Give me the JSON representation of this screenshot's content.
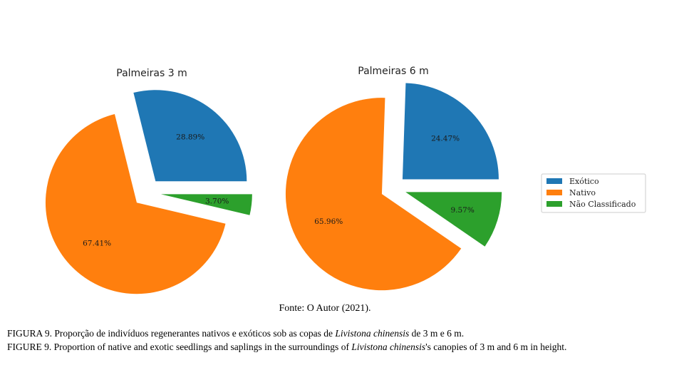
{
  "chart_data": [
    {
      "type": "pie",
      "title": "Palmeiras 3 m",
      "exploded": true,
      "start_angle_deg": 0,
      "direction": "counterclockwise",
      "slices": [
        {
          "name": "Exótico",
          "value": 28.89,
          "label": "28.89%",
          "color": "#1f77b4"
        },
        {
          "name": "Nativo",
          "value": 67.41,
          "label": "67.41%",
          "color": "#ff7f0e"
        },
        {
          "name": "Não Classificado",
          "value": 3.7,
          "label": "3.70%",
          "color": "#2ca02c"
        }
      ]
    },
    {
      "type": "pie",
      "title": "Palmeiras 6 m",
      "exploded": true,
      "start_angle_deg": 0,
      "direction": "counterclockwise",
      "slices": [
        {
          "name": "Exótico",
          "value": 24.47,
          "label": "24.47%",
          "color": "#1f77b4"
        },
        {
          "name": "Nativo",
          "value": 65.96,
          "label": "65.96%",
          "color": "#ff7f0e"
        },
        {
          "name": "Não Classificado",
          "value": 9.57,
          "label": "9.57%",
          "color": "#2ca02c"
        }
      ]
    }
  ],
  "legend": {
    "placement": "right",
    "entries": [
      {
        "label": "Exótico",
        "color": "#1f77b4"
      },
      {
        "label": "Nativo",
        "color": "#ff7f0e"
      },
      {
        "label": "Não Classificado",
        "color": "#2ca02c"
      }
    ]
  },
  "source_note": "Fonte: O Autor (2021).",
  "caption_pt": {
    "before": "FIGURA 9. Proporção de indivíduos regenerantes nativos e exóticos sob as copas de ",
    "species": "Livistona chinensis",
    "after": " de 3 m e 6 m."
  },
  "caption_en": {
    "before": "FIGURE 9. Proportion of native and exotic seedlings and saplings in the surroundings of ",
    "species": "Livistona chinensis",
    "after": "'s canopies of 3 m and 6 m in height."
  }
}
